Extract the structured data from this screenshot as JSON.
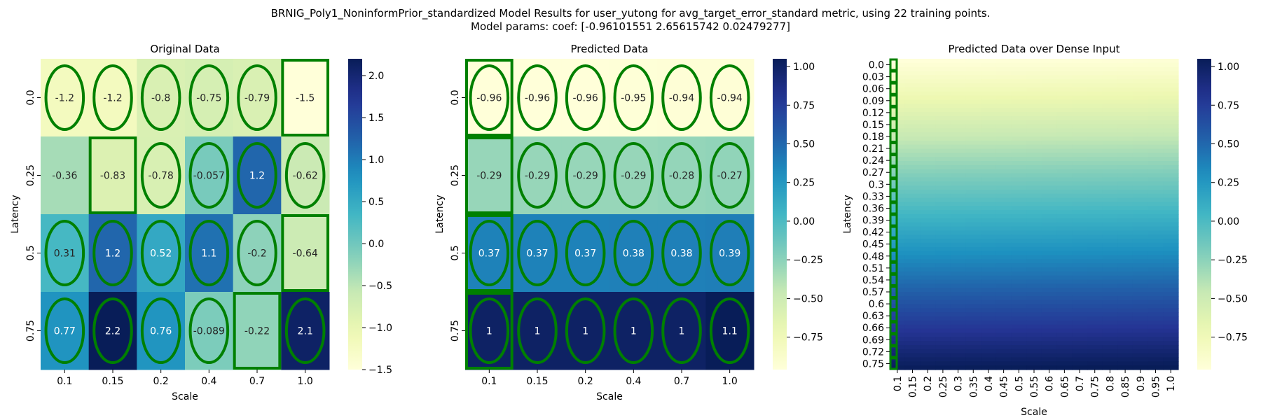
{
  "figure": {
    "title_line1": "BRNIG_Poly1_NoninformPrior_standardized Model Results for user_yutong for avg_target_error_standard metric, using 22 training points.",
    "title_line2": "Model params: coef: [-0.96101551  2.65615742  0.02479277]"
  },
  "colors": {
    "colormap": [
      "#ffffd9",
      "#edf8b1",
      "#c7e9b4",
      "#7fcdbb",
      "#41b6c4",
      "#1d91c0",
      "#225ea8",
      "#253494",
      "#081d58"
    ],
    "marker": "#008000"
  },
  "chart_data": [
    {
      "type": "heatmap",
      "title": "Original Data",
      "xlabel": "Scale",
      "ylabel": "Latency",
      "x_ticks": [
        "0.1",
        "0.15",
        "0.2",
        "0.4",
        "0.7",
        "1.0"
      ],
      "y_ticks": [
        "0.0",
        "0.25",
        "0.5",
        "0.75"
      ],
      "values": [
        [
          -1.2,
          -1.2,
          -0.8,
          -0.75,
          -0.79,
          -1.5
        ],
        [
          -0.36,
          -0.83,
          -0.78,
          -0.057,
          1.2,
          -0.62
        ],
        [
          0.31,
          1.2,
          0.52,
          1.1,
          -0.2,
          -0.64
        ],
        [
          0.77,
          2.2,
          0.76,
          -0.089,
          -0.22,
          2.1
        ]
      ],
      "cell_labels": [
        [
          "-1.2",
          "-1.2",
          "-0.8",
          "-0.75",
          "-0.79",
          "-1.5"
        ],
        [
          "-0.36",
          "-0.83",
          "-0.78",
          "-0.057",
          "1.2",
          "-0.62"
        ],
        [
          "0.31",
          "1.2",
          "0.52",
          "1.1",
          "-0.2",
          "-0.64"
        ],
        [
          "0.77",
          "2.2",
          "0.76",
          "-0.089",
          "-0.22",
          "2.1"
        ]
      ],
      "markers": [
        [
          "ellipse",
          "ellipse",
          "ellipse",
          "ellipse",
          "ellipse",
          "square"
        ],
        [
          "",
          "square",
          "ellipse",
          "ellipse",
          "ellipse",
          "ellipse"
        ],
        [
          "ellipse",
          "ellipse",
          "ellipse",
          "ellipse",
          "ellipse",
          "square"
        ],
        [
          "ellipse",
          "ellipse",
          "ellipse",
          "ellipse",
          "square",
          "ellipse"
        ]
      ],
      "vmin": -1.5,
      "vmax": 2.2,
      "colorbar_ticks": [
        -1.5,
        -1.0,
        -0.5,
        0.0,
        0.5,
        1.0,
        1.5,
        2.0
      ],
      "colorbar_tick_labels": [
        "−1.5",
        "−1.0",
        "−0.5",
        "0.0",
        "0.5",
        "1.0",
        "1.5",
        "2.0"
      ]
    },
    {
      "type": "heatmap",
      "title": "Predicted Data",
      "xlabel": "Scale",
      "ylabel": "Latency",
      "x_ticks": [
        "0.1",
        "0.15",
        "0.2",
        "0.4",
        "0.7",
        "1.0"
      ],
      "y_ticks": [
        "0.0",
        "0.25",
        "0.5",
        "0.75"
      ],
      "values": [
        [
          -0.96,
          -0.96,
          -0.96,
          -0.95,
          -0.94,
          -0.94
        ],
        [
          -0.29,
          -0.29,
          -0.29,
          -0.29,
          -0.28,
          -0.27
        ],
        [
          0.37,
          0.37,
          0.37,
          0.38,
          0.38,
          0.39
        ],
        [
          1.0,
          1.0,
          1.0,
          1.0,
          1.0,
          1.1
        ]
      ],
      "cell_labels": [
        [
          "-0.96",
          "-0.96",
          "-0.96",
          "-0.95",
          "-0.94",
          "-0.94"
        ],
        [
          "-0.29",
          "-0.29",
          "-0.29",
          "-0.29",
          "-0.28",
          "-0.27"
        ],
        [
          "0.37",
          "0.37",
          "0.37",
          "0.38",
          "0.38",
          "0.39"
        ],
        [
          "1",
          "1",
          "1",
          "1",
          "1",
          "1.1"
        ]
      ],
      "markers": [
        [
          "ellipse",
          "ellipse",
          "ellipse",
          "ellipse",
          "ellipse",
          "ellipse"
        ],
        [
          "square",
          "ellipse",
          "ellipse",
          "ellipse",
          "ellipse",
          "ellipse"
        ],
        [
          "ellipse",
          "ellipse",
          "ellipse",
          "ellipse",
          "ellipse",
          "ellipse"
        ],
        [
          "ellipse",
          "ellipse",
          "ellipse",
          "ellipse",
          "ellipse",
          "ellipse"
        ]
      ],
      "marker_notes": "Column 0.1 cells are also outlined with squares in every row.",
      "first_column_squares": true,
      "vmin": -0.96,
      "vmax": 1.05,
      "colorbar_ticks": [
        -0.75,
        -0.5,
        -0.25,
        0.0,
        0.25,
        0.5,
        0.75,
        1.0
      ],
      "colorbar_tick_labels": [
        "−0.75",
        "−0.50",
        "−0.25",
        "0.00",
        "0.25",
        "0.50",
        "0.75",
        "1.00"
      ]
    },
    {
      "type": "heatmap",
      "title": "Predicted Data over Dense Input",
      "xlabel": "Scale",
      "ylabel": "Latency",
      "x_ticks": [
        "0.1",
        "0.15",
        "0.2",
        "0.25",
        "0.3",
        "0.35",
        "0.4",
        "0.45",
        "0.5",
        "0.55",
        "0.6",
        "0.65",
        "0.7",
        "0.75",
        "0.8",
        "0.85",
        "0.9",
        "0.95",
        "1.0"
      ],
      "y_ticks": [
        "0.0",
        "0.03",
        "0.06",
        "0.09",
        "0.12",
        "0.15",
        "0.18",
        "0.21",
        "0.24",
        "0.27",
        "0.3",
        "0.33",
        "0.36",
        "0.39",
        "0.42",
        "0.45",
        "0.48",
        "0.51",
        "0.54",
        "0.57",
        "0.6",
        "0.63",
        "0.66",
        "0.69",
        "0.72",
        "0.75"
      ],
      "latency_range": [
        0.0,
        0.75
      ],
      "scale_range": [
        0.1,
        1.0
      ],
      "model_coef": [
        -0.96101551,
        2.65615742,
        0.02479277
      ],
      "vmin": -0.96,
      "vmax": 1.05,
      "colorbar_ticks": [
        -0.75,
        -0.5,
        -0.25,
        0.0,
        0.25,
        0.5,
        0.75,
        1.0
      ],
      "colorbar_tick_labels": [
        "−0.75",
        "−0.50",
        "−0.25",
        "0.00",
        "0.25",
        "0.50",
        "0.75",
        "1.00"
      ]
    }
  ]
}
